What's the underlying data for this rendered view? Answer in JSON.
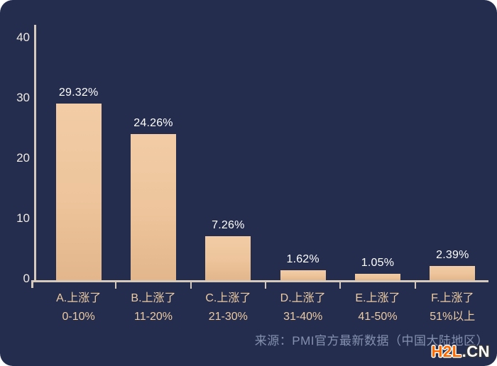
{
  "card": {
    "background": "#242D4E"
  },
  "chart_data": {
    "type": "bar",
    "title": "",
    "categories": [
      "A.上涨了 0-10%",
      "B.上涨了 11-20%",
      "C.上涨了 21-30%",
      "D.上涨了 31-40%",
      "E.上涨了 41-50%",
      "F.上涨了 51%以上"
    ],
    "category_lines": [
      [
        "A.上涨了",
        "0-10%"
      ],
      [
        "B.上涨了",
        "11-20%"
      ],
      [
        "C.上涨了",
        "21-30%"
      ],
      [
        "D.上涨了",
        "31-40%"
      ],
      [
        "E.上涨了",
        "41-50%"
      ],
      [
        "F.上涨了",
        "51%以上"
      ]
    ],
    "values": [
      29.32,
      24.26,
      7.26,
      1.62,
      1.05,
      2.39
    ],
    "value_labels": [
      "29.32%",
      "24.26%",
      "7.26%",
      "1.62%",
      "1.05%",
      "2.39%"
    ],
    "yticks": [
      0,
      10,
      20,
      30,
      40
    ],
    "ylim": [
      0,
      40
    ],
    "grid": false,
    "legend": false,
    "bar_color_top": "#F2CCA6",
    "bar_color_bottom": "#E3B68C",
    "axis_color": "#D5CABC",
    "ytick_label_color": "#EFE9DF",
    "xtick_label_color": "#EDCBA3",
    "value_label_color": "#FFFFFF"
  },
  "footer": {
    "source": "来源：PMI官方最新数据（中国大陆地区）",
    "source_color": "#8590AF",
    "logo_primary": "H2L",
    "logo_secondary": ".CN",
    "logo_primary_color": "#FF6A00",
    "logo_secondary_color": "#FFFFFF"
  }
}
